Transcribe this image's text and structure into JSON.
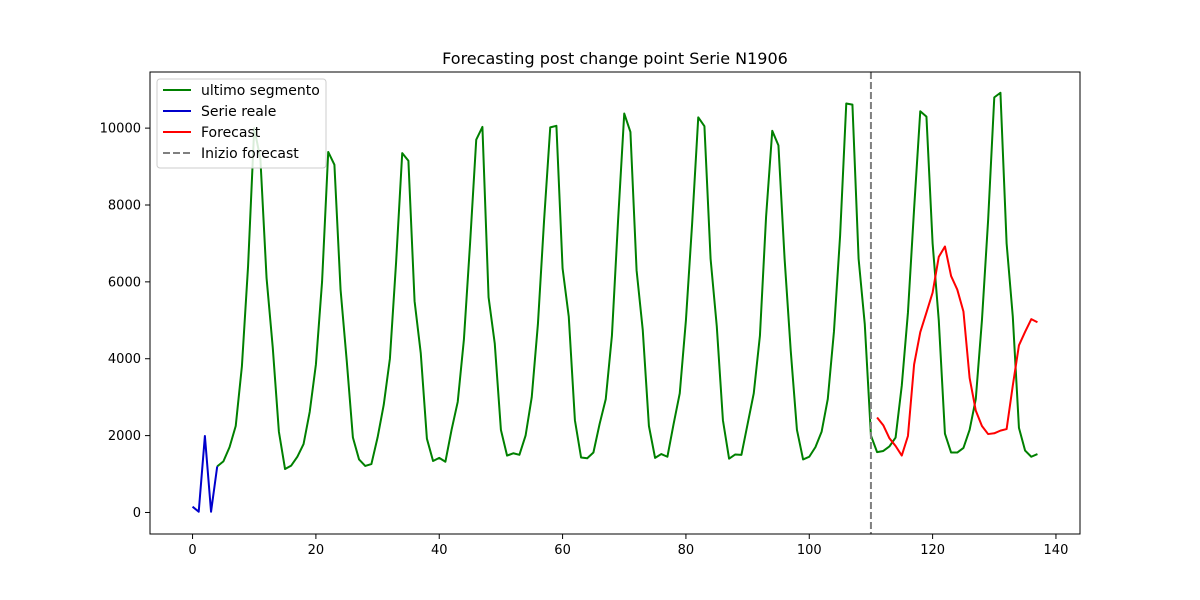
{
  "chart_data": {
    "type": "line",
    "title": "Forecasting post change point Serie N1906",
    "xlabel": "",
    "ylabel": "",
    "xlim": [
      -6.9,
      143.9
    ],
    "ylim": [
      -560,
      11460
    ],
    "x_ticks": [
      0,
      20,
      40,
      60,
      80,
      100,
      120,
      140
    ],
    "y_ticks": [
      0,
      2000,
      4000,
      6000,
      8000,
      10000
    ],
    "grid": false,
    "legend_position": "top-left",
    "series": [
      {
        "name": "ultimo segmento",
        "color": "#008000",
        "x": [
          4,
          5,
          6,
          7,
          8,
          9,
          10,
          11,
          12,
          13,
          14,
          15,
          16,
          17,
          18,
          19,
          20,
          21,
          22,
          23,
          24,
          25,
          26,
          27,
          28,
          29,
          30,
          31,
          32,
          33,
          34,
          35,
          36,
          37,
          38,
          39,
          40,
          41,
          42,
          43,
          44,
          45,
          46,
          47,
          48,
          49,
          50,
          51,
          52,
          53,
          54,
          55,
          56,
          57,
          58,
          59,
          60,
          61,
          62,
          63,
          64,
          65,
          66,
          67,
          68,
          69,
          70,
          71,
          72,
          73,
          74,
          75,
          76,
          77,
          78,
          79,
          80,
          81,
          82,
          83,
          84,
          85,
          86,
          87,
          88,
          89,
          90,
          91,
          92,
          93,
          94,
          95,
          96,
          97,
          98,
          99,
          100,
          101,
          102,
          103,
          104,
          105,
          106,
          107,
          108,
          109,
          110,
          111,
          112,
          113,
          114,
          115,
          116,
          117,
          118,
          119,
          120,
          121,
          122,
          123,
          124,
          125,
          126,
          127,
          128,
          129,
          130,
          131,
          132,
          133,
          134,
          135,
          136,
          137
        ],
        "y": [
          1200,
          1330,
          1700,
          2250,
          3800,
          6400,
          10000,
          9200,
          6100,
          4300,
          2100,
          1130,
          1220,
          1450,
          1780,
          2620,
          3850,
          6000,
          9380,
          9050,
          5800,
          3950,
          1950,
          1380,
          1210,
          1260,
          1950,
          2800,
          4000,
          6500,
          9350,
          9150,
          5500,
          4150,
          1920,
          1340,
          1420,
          1320,
          2150,
          2880,
          4500,
          7000,
          9700,
          10030,
          5600,
          4400,
          2150,
          1480,
          1540,
          1500,
          2000,
          3000,
          4900,
          7600,
          10020,
          10060,
          6350,
          5100,
          2400,
          1430,
          1410,
          1560,
          2300,
          2950,
          4600,
          7600,
          10380,
          9900,
          6300,
          4750,
          2250,
          1420,
          1520,
          1450,
          2300,
          3100,
          5000,
          7500,
          10280,
          10050,
          6600,
          4850,
          2400,
          1400,
          1510,
          1500,
          2300,
          3100,
          4600,
          7700,
          9930,
          9550,
          6600,
          4200,
          2150,
          1380,
          1450,
          1700,
          2100,
          2950,
          4700,
          7200,
          10640,
          10610,
          6600,
          4900,
          2000,
          1570,
          1600,
          1720,
          1950,
          3300,
          5200,
          7900,
          10440,
          10300,
          7000,
          5000,
          2050,
          1560,
          1560,
          1680,
          2150,
          2950,
          5000,
          7600,
          10800,
          10920,
          7000,
          5100,
          2200,
          1610,
          1450,
          1520
        ]
      },
      {
        "name": "Serie reale",
        "color": "#0000cc",
        "x": [
          0,
          1,
          2,
          3,
          4
        ],
        "y": [
          150,
          20,
          1990,
          20,
          1200
        ]
      },
      {
        "name": "Forecast",
        "color": "#ff0000",
        "x": [
          111,
          112,
          113,
          114,
          115,
          116,
          117,
          118,
          119,
          120,
          121,
          122,
          123,
          124,
          125,
          126,
          127,
          128,
          129,
          130,
          131,
          132,
          133,
          134,
          135,
          136,
          137
        ],
        "y": [
          2470,
          2270,
          1930,
          1730,
          1480,
          1990,
          3850,
          4690,
          5200,
          5720,
          6650,
          6920,
          6150,
          5800,
          5230,
          3500,
          2650,
          2250,
          2040,
          2060,
          2130,
          2170,
          3300,
          4350,
          4700,
          5030,
          4950
        ]
      }
    ],
    "vline": {
      "name": "Inizio forecast",
      "x": 110,
      "color": "#808080"
    }
  }
}
